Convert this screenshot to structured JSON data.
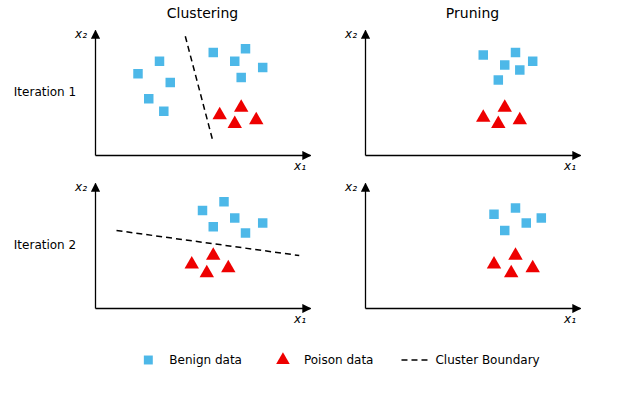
{
  "chart_data": [
    {
      "type": "scatter",
      "title": "Clustering",
      "annotations": [
        "Iteration 1"
      ],
      "xlabel": "x₁",
      "ylabel": "x₂",
      "xlim": [
        0,
        10
      ],
      "ylim": [
        0,
        10
      ],
      "xticks": [],
      "yticks": [],
      "tick_labels": false,
      "legend": "bottom",
      "series": [
        {
          "name": "Benign data",
          "color": "#4DB8E8",
          "marker": "square",
          "x": [
            2.0,
            3.0,
            3.5,
            2.5,
            3.2,
            5.5,
            6.5,
            7.0,
            6.8,
            7.8
          ],
          "values": [
            6.5,
            7.5,
            5.8,
            4.5,
            3.5,
            8.2,
            7.5,
            8.5,
            6.2,
            7.0
          ]
        },
        {
          "name": "Poison data",
          "color": "#EE0000",
          "marker": "triangle",
          "x": [
            5.8,
            6.8,
            7.5,
            6.5
          ],
          "values": [
            3.2,
            3.8,
            2.8,
            2.5
          ]
        },
        {
          "name": "Cluster Boundary",
          "type": "line",
          "line_style": "dashed",
          "color": "#000000",
          "x": [
            4.2,
            5.5
          ],
          "values": [
            9.5,
            1.0
          ]
        }
      ]
    },
    {
      "type": "scatter",
      "title": "Pruning",
      "xlabel": "x₁",
      "ylabel": "x₂",
      "xlim": [
        0,
        10
      ],
      "ylim": [
        0,
        10
      ],
      "xticks": [],
      "yticks": [],
      "tick_labels": false,
      "series": [
        {
          "name": "Benign data",
          "color": "#4DB8E8",
          "marker": "square",
          "x": [
            5.5,
            6.5,
            7.0,
            6.2,
            7.2,
            7.8
          ],
          "values": [
            8.0,
            7.2,
            8.2,
            6.0,
            6.8,
            7.5
          ]
        },
        {
          "name": "Poison data",
          "color": "#EE0000",
          "marker": "triangle",
          "x": [
            5.5,
            6.5,
            7.2,
            6.2
          ],
          "values": [
            3.0,
            3.8,
            2.8,
            2.5
          ]
        }
      ]
    },
    {
      "type": "scatter",
      "annotations": [
        "Iteration 2"
      ],
      "xlabel": "x₁",
      "ylabel": "x₂",
      "xlim": [
        0,
        10
      ],
      "ylim": [
        0,
        10
      ],
      "xticks": [],
      "yticks": [],
      "tick_labels": false,
      "series": [
        {
          "name": "Benign data",
          "color": "#4DB8E8",
          "marker": "square",
          "x": [
            5.0,
            6.0,
            5.5,
            6.5,
            7.0,
            7.8
          ],
          "values": [
            7.8,
            8.5,
            6.5,
            7.2,
            6.0,
            6.8
          ]
        },
        {
          "name": "Poison data",
          "color": "#EE0000",
          "marker": "triangle",
          "x": [
            4.5,
            5.5,
            6.2,
            5.2
          ],
          "values": [
            3.5,
            4.2,
            3.2,
            2.8
          ]
        },
        {
          "name": "Cluster Boundary",
          "type": "line",
          "line_style": "dashed",
          "color": "#000000",
          "x": [
            1.0,
            9.5
          ],
          "values": [
            6.2,
            4.2
          ]
        }
      ]
    },
    {
      "type": "scatter",
      "xlabel": "x₁",
      "ylabel": "x₂",
      "xlim": [
        0,
        10
      ],
      "ylim": [
        0,
        10
      ],
      "xticks": [],
      "yticks": [],
      "tick_labels": false,
      "series": [
        {
          "name": "Benign data",
          "color": "#4DB8E8",
          "marker": "square",
          "x": [
            6.0,
            7.0,
            6.5,
            7.5,
            8.2
          ],
          "values": [
            7.5,
            8.0,
            6.2,
            6.8,
            7.2
          ]
        },
        {
          "name": "Poison data",
          "color": "#EE0000",
          "marker": "triangle",
          "x": [
            6.0,
            7.0,
            7.8,
            6.8
          ],
          "values": [
            3.5,
            4.2,
            3.2,
            2.8
          ]
        }
      ]
    }
  ]
}
